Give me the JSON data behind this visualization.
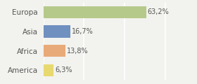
{
  "categories": [
    "Europa",
    "Asia",
    "Africa",
    "America"
  ],
  "values": [
    63.2,
    16.7,
    13.8,
    6.3
  ],
  "labels": [
    "63,2%",
    "16,7%",
    "13,8%",
    "6,3%"
  ],
  "bar_colors": [
    "#b5c98a",
    "#7090c0",
    "#e8aa78",
    "#e8d870"
  ],
  "background_color": "#f2f2ee",
  "xlim": [
    0,
    80
  ],
  "bar_height": 0.62,
  "text_color": "#555555",
  "grid_color": "#ffffff",
  "label_fontsize": 7.0,
  "ylabel_fontsize": 7.5
}
